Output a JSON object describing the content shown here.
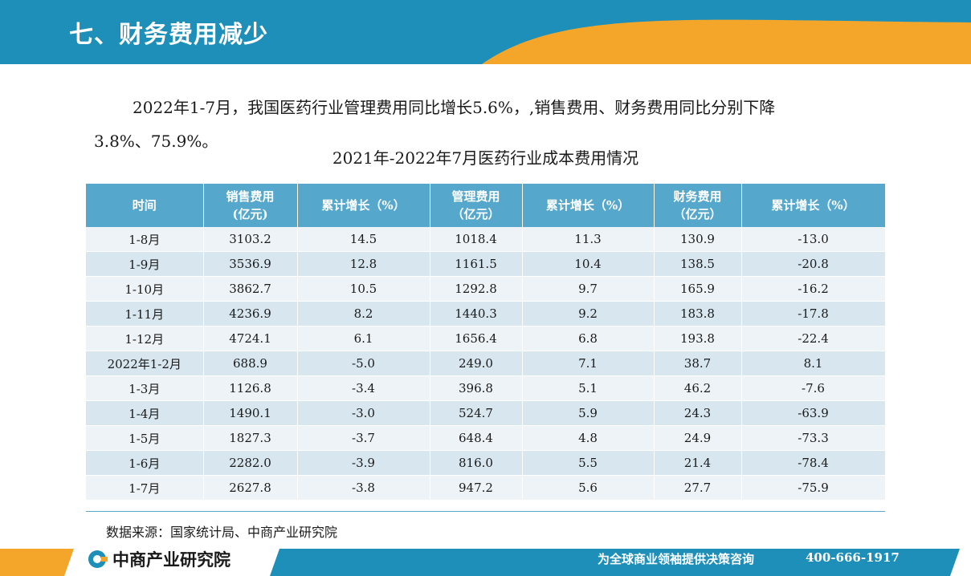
{
  "header": {
    "title": "七、财务费用减少"
  },
  "intro": {
    "line1": "2022年1-7月，我国医药行业管理费用同比增长5.6%，,销售费用、财务费用同比分别下降",
    "line2": "3.8%、75.9%。"
  },
  "table": {
    "title": "2021年-2022年7月医药行业成本费用情况",
    "columns": [
      {
        "line1": "时间",
        "line2": ""
      },
      {
        "line1": "销售费用",
        "line2": "(亿元)"
      },
      {
        "line1": "累计增长（%）",
        "line2": ""
      },
      {
        "line1": "管理费用",
        "line2": "（亿元）"
      },
      {
        "line1": "累计增长（%）",
        "line2": ""
      },
      {
        "line1": "财务费用",
        "line2": "（亿元）"
      },
      {
        "line1": "累计增长（%）",
        "line2": ""
      }
    ],
    "rows": [
      [
        "1-8月",
        "3103.2",
        "14.5",
        "1018.4",
        "11.3",
        "130.9",
        "-13.0"
      ],
      [
        "1-9月",
        "3536.9",
        "12.8",
        "1161.5",
        "10.4",
        "138.5",
        "-20.8"
      ],
      [
        "1-10月",
        "3862.7",
        "10.5",
        "1292.8",
        "9.7",
        "165.9",
        "-16.2"
      ],
      [
        "1-11月",
        "4236.9",
        "8.2",
        "1440.3",
        "9.2",
        "183.8",
        "-17.8"
      ],
      [
        "1-12月",
        "4724.1",
        "6.1",
        "1656.4",
        "6.8",
        "193.8",
        "-22.4"
      ],
      [
        "2022年1-2月",
        "688.9",
        "-5.0",
        "249.0",
        "7.1",
        "38.7",
        "8.1"
      ],
      [
        "1-3月",
        "1126.8",
        "-3.4",
        "396.8",
        "5.1",
        "46.2",
        "-7.6"
      ],
      [
        "1-4月",
        "1490.1",
        "-3.0",
        "524.7",
        "5.9",
        "24.3",
        "-63.9"
      ],
      [
        "1-5月",
        "1827.3",
        "-3.7",
        "648.4",
        "4.8",
        "24.9",
        "-73.3"
      ],
      [
        "1-6月",
        "2282.0",
        "-3.9",
        "816.0",
        "5.5",
        "21.4",
        "-78.4"
      ],
      [
        "1-7月",
        "2627.8",
        "-3.8",
        "947.2",
        "5.6",
        "27.7",
        "-75.9"
      ]
    ]
  },
  "source": "数据来源：国家统计局、中商产业研究院",
  "footer": {
    "logo_text": "中商产业研究院",
    "slogan": "为全球商业领袖提供决策咨询",
    "phone": "400-666-1917"
  },
  "colors": {
    "header_blue": "#1d8fb8",
    "accent_orange": "#f3a62a",
    "table_header": "#55a7cc"
  }
}
